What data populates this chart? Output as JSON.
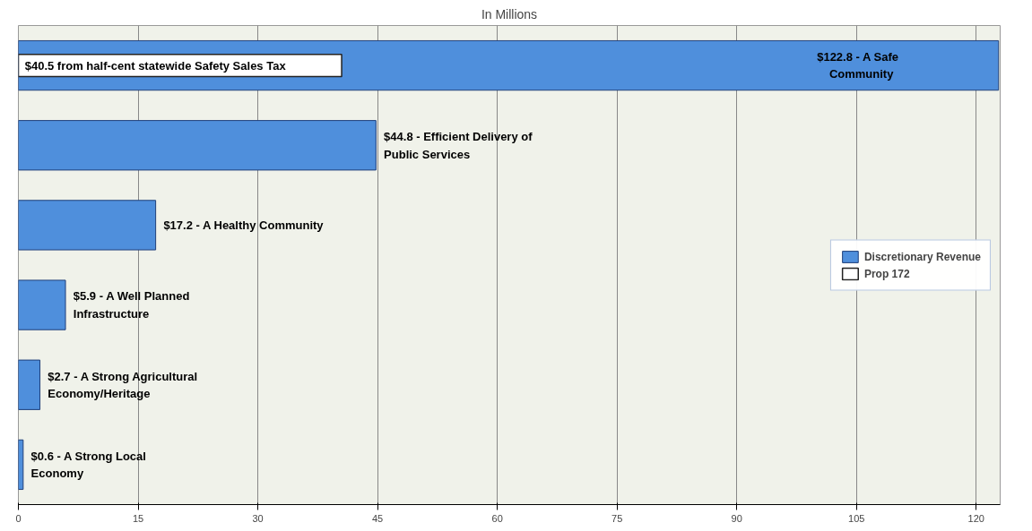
{
  "chart_data": {
    "type": "bar",
    "orientation": "horizontal",
    "title": "In Millions",
    "categories": [
      null,
      null,
      null,
      null,
      null,
      null
    ],
    "series": [
      {
        "name": "Discretionary Revenue",
        "color": "#4f8fdc",
        "values": [
          122.8,
          44.8,
          17.2,
          5.9,
          2.7,
          0.6
        ],
        "value_labels": [
          "$122.8  -  A Safe\nCommunity",
          "$44.8 - Efficient Delivery of\nPublic Services",
          "$17.2 - A Healthy Community",
          "$5.9 - A Well Planned\nInfrastructure",
          "$2.7 - A Strong Agricultural\nEconomy/Heritage",
          "$0.6 - A Strong Local\nEconomy"
        ]
      },
      {
        "name": "Prop 172",
        "color": "#ffffff",
        "values": [
          40.5,
          null,
          null,
          null,
          null,
          null
        ],
        "value_labels": [
          "$40.5 from half-cent statewide Safety Sales Tax",
          null,
          null,
          null,
          null,
          null
        ]
      }
    ],
    "xlim": [
      0,
      123
    ],
    "xticks": [
      0,
      15,
      30,
      45,
      60,
      75,
      90,
      105,
      120
    ],
    "grid": "x",
    "legend": "right"
  }
}
